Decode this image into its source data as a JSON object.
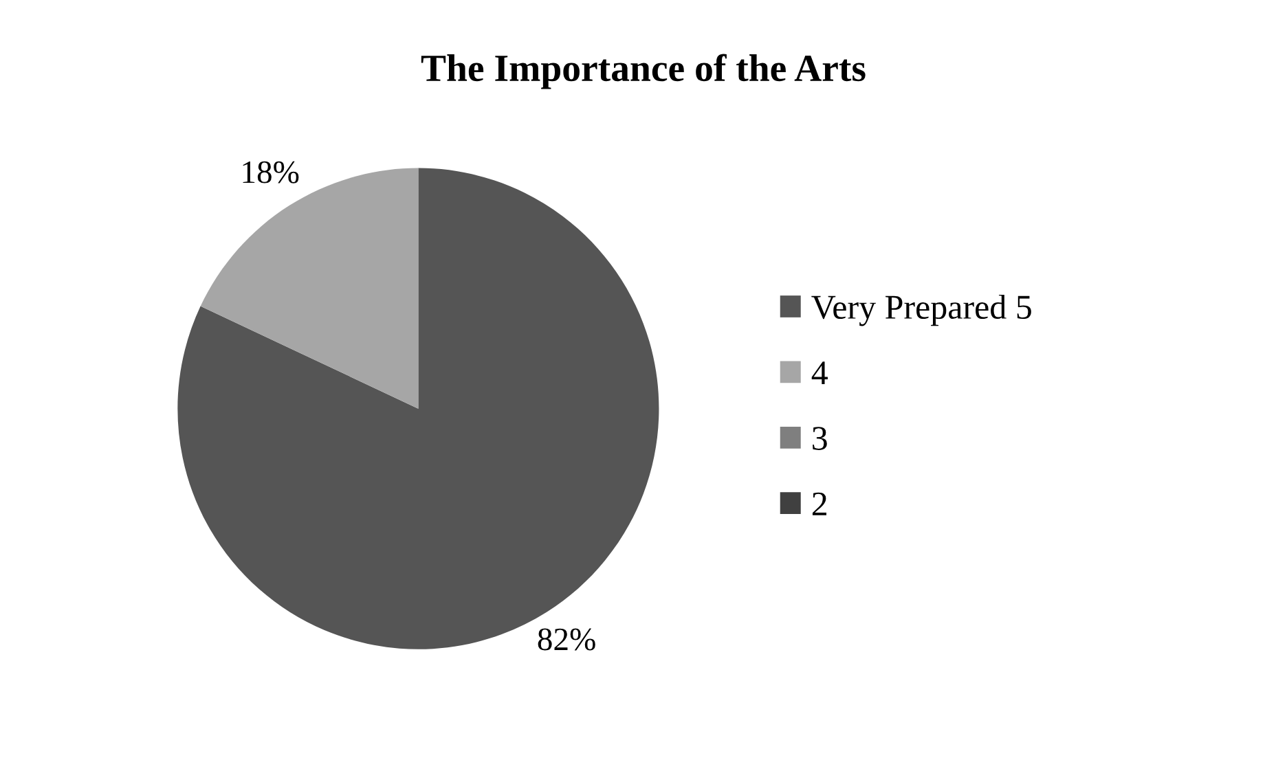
{
  "chart_data": {
    "type": "pie",
    "title": "The Importance of the Arts",
    "categories": [
      "Very Prepared 5",
      "4",
      "3",
      "2"
    ],
    "values": [
      82,
      18,
      0,
      0
    ],
    "colors": [
      "#555555",
      "#a6a6a6",
      "#7f7f7f",
      "#404040"
    ],
    "value_labels": [
      "82%",
      "18%",
      null,
      null
    ],
    "legend": "right"
  }
}
